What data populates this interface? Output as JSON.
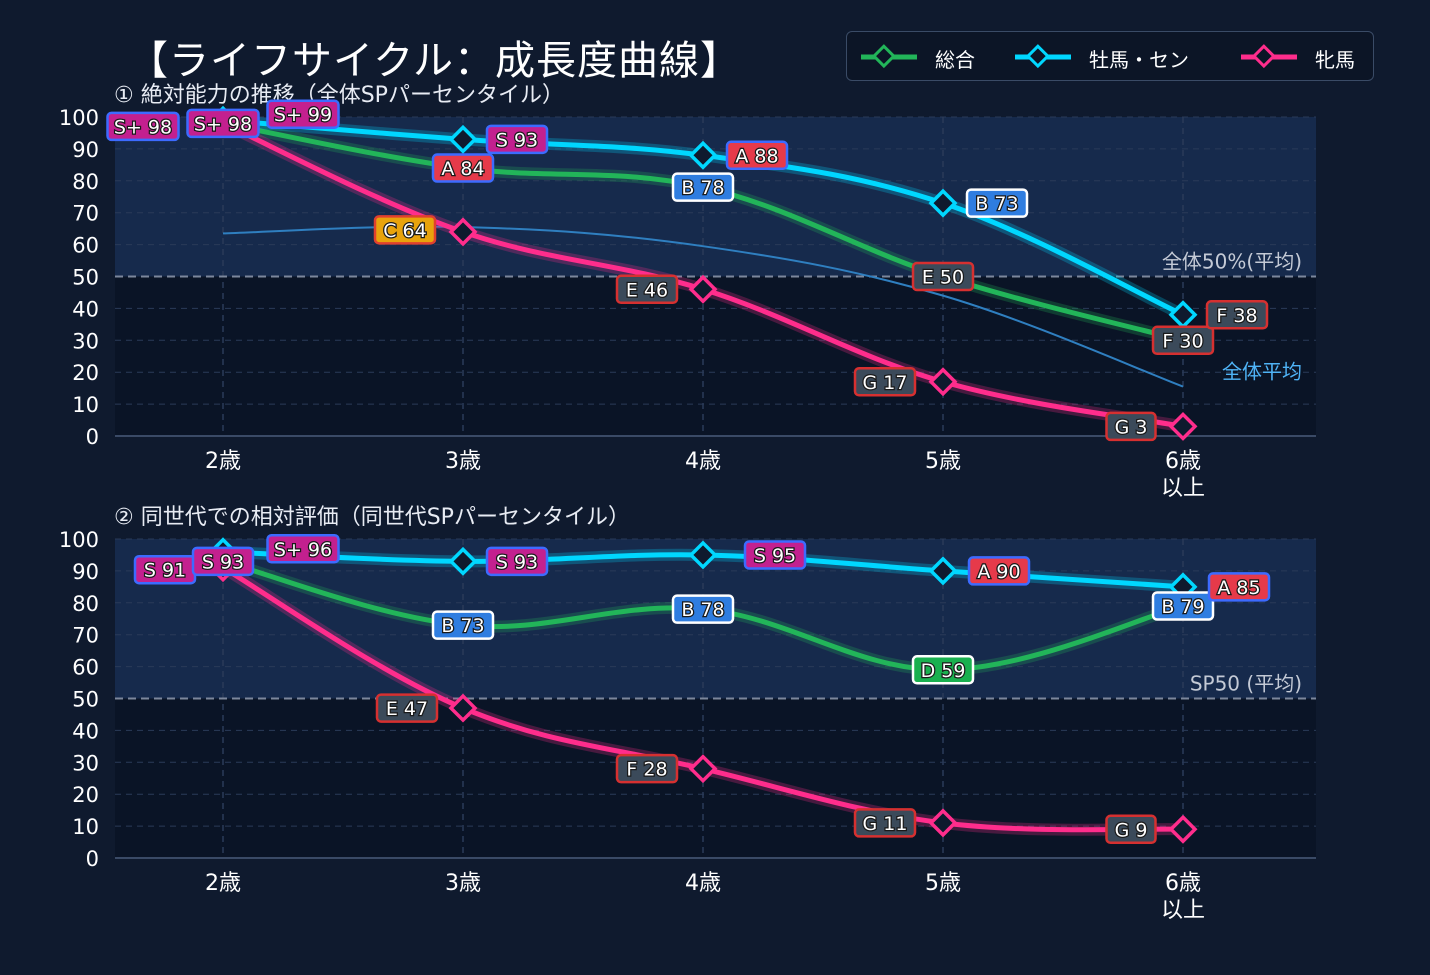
{
  "header": {
    "title": "【ライフサイクル：成長度曲線】"
  },
  "legend": [
    {
      "name": "総合",
      "color": "#22b559"
    },
    {
      "name": "牡馬・セン",
      "color": "#00d7ff"
    },
    {
      "name": "牝馬",
      "color": "#ff2d8c"
    }
  ],
  "chart_data": [
    {
      "type": "line",
      "title": "① 絶対能力の推移（全体SPパーセンタイル）",
      "categories": [
        "2歳",
        "3歳",
        "4歳",
        "5歳",
        "6歳\n以上"
      ],
      "ylim": [
        0,
        100
      ],
      "yticks": [
        0,
        10,
        20,
        30,
        40,
        50,
        60,
        70,
        80,
        90,
        100
      ],
      "reference_line": {
        "value": 50,
        "label": "全体50%(平均)"
      },
      "average_curve": {
        "label": "全体平均",
        "values": [
          63.5,
          65.5,
          59.5,
          44,
          15.5
        ]
      },
      "series": [
        {
          "name": "総合",
          "values": [
            98,
            84,
            78,
            50,
            30
          ],
          "labels": [
            "S+ 98",
            "A 84",
            "B 78",
            "E 50",
            "F 30"
          ]
        },
        {
          "name": "牡馬・セン",
          "values": [
            99,
            93,
            88,
            73,
            38
          ],
          "labels": [
            "S+ 99",
            "S 93",
            "A 88",
            "B 73",
            "F 38"
          ]
        },
        {
          "name": "牝馬",
          "values": [
            98,
            64,
            46,
            17,
            3
          ],
          "labels": [
            "S+ 98",
            "C 64",
            "E 46",
            "G 17",
            "G 3"
          ]
        }
      ],
      "grid": true
    },
    {
      "type": "line",
      "title": "② 同世代での相対評価（同世代SPパーセンタイル）",
      "categories": [
        "2歳",
        "3歳",
        "4歳",
        "5歳",
        "6歳\n以上"
      ],
      "ylim": [
        0,
        100
      ],
      "yticks": [
        0,
        10,
        20,
        30,
        40,
        50,
        60,
        70,
        80,
        90,
        100
      ],
      "reference_line": {
        "value": 50,
        "label": "SP50 (平均)"
      },
      "series": [
        {
          "name": "総合",
          "values": [
            93,
            73,
            78,
            59,
            79
          ],
          "labels": [
            "S 93",
            "B 73",
            "B 78",
            "D 59",
            "B 79"
          ]
        },
        {
          "name": "牡馬・セン",
          "values": [
            96,
            93,
            95,
            90,
            85
          ],
          "labels": [
            "S+ 96",
            "S 93",
            "S 95",
            "A 90",
            "A 85"
          ]
        },
        {
          "name": "牝馬",
          "values": [
            91,
            47,
            28,
            11,
            9
          ],
          "labels": [
            "S 91",
            "E 47",
            "F 28",
            "G 11",
            "G 9"
          ]
        }
      ],
      "grid": true
    }
  ]
}
